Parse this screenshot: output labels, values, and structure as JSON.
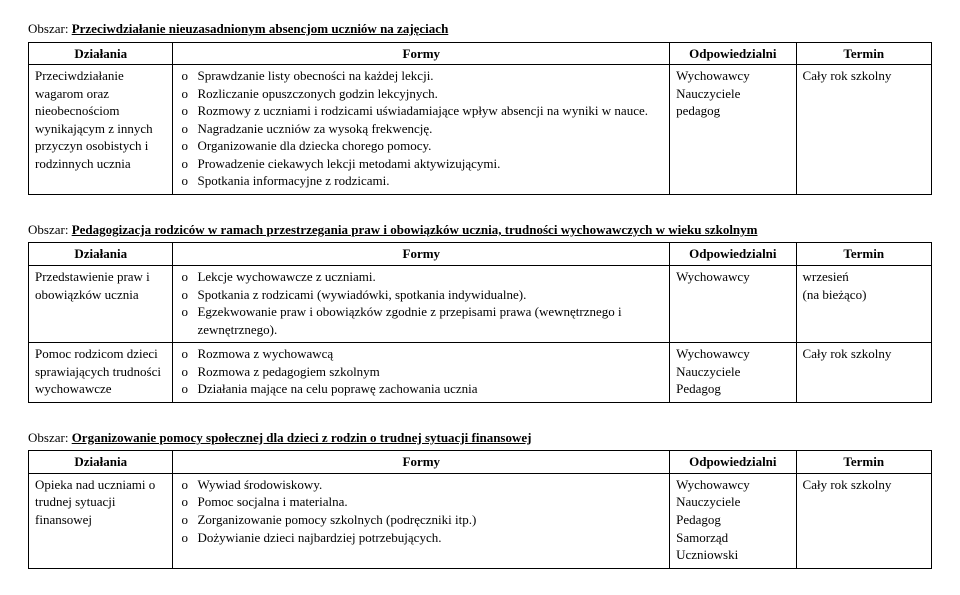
{
  "labels": {
    "area_prefix": "Obszar:",
    "col_dzialania": "Działania",
    "col_formy": "Formy",
    "col_odp": "Odpowiedzialni",
    "col_termin": "Termin"
  },
  "sections": [
    {
      "title": "Przeciwdziałanie nieuzasadnionym absencjom uczniów na zajęciach",
      "rows": [
        {
          "dzialania": "Przeciwdziałanie wagarom oraz nieobecnościom wynikającym z innych przyczyn osobistych i rodzinnych ucznia",
          "formy": [
            "Sprawdzanie listy obecności na każdej lekcji.",
            "Rozliczanie opuszczonych godzin lekcyjnych.",
            "Rozmowy z uczniami i rodzicami uświadamiające wpływ absencji na wyniki w nauce.",
            "Nagradzanie uczniów za wysoką frekwencję.",
            "Organizowanie dla dziecka chorego pomocy.",
            "Prowadzenie ciekawych lekcji metodami aktywizującymi.",
            "Spotkania informacyjne z rodzicami."
          ],
          "odp": "Wychowawcy\nNauczyciele\npedagog",
          "termin": "Cały rok szkolny"
        }
      ]
    },
    {
      "title": "Pedagogizacja rodziców w ramach przestrzegania praw i obowiązków ucznia, trudności wychowawczych w wieku szkolnym",
      "rows": [
        {
          "dzialania": "Przedstawienie praw i obowiązków ucznia",
          "formy": [
            "Lekcje wychowawcze z uczniami.",
            "Spotkania z rodzicami (wywiadówki, spotkania indywidualne).",
            "Egzekwowanie praw i obowiązków zgodnie z przepisami prawa (wewnętrznego i zewnętrznego)."
          ],
          "odp": "Wychowawcy",
          "termin": "wrzesień\n(na bieżąco)"
        },
        {
          "dzialania": "Pomoc rodzicom dzieci sprawiających trudności wychowawcze",
          "formy": [
            "Rozmowa z wychowawcą",
            "Rozmowa z pedagogiem szkolnym",
            "Działania mające na celu poprawę zachowania ucznia"
          ],
          "odp": "Wychowawcy\nNauczyciele\nPedagog",
          "termin": "Cały rok szkolny"
        }
      ]
    },
    {
      "title": "Organizowanie pomocy społecznej dla dzieci z rodzin o trudnej sytuacji finansowej",
      "rows": [
        {
          "dzialania": "Opieka nad uczniami o trudnej sytuacji finansowej",
          "formy": [
            "Wywiad środowiskowy.",
            "Pomoc socjalna i materialna.",
            "Zorganizowanie pomocy szkolnych (podręczniki itp.)",
            "Dożywianie dzieci najbardziej potrzebujących."
          ],
          "odp": "Wychowawcy\nNauczyciele\nPedagog\nSamorząd Uczniowski",
          "termin": "Cały rok szkolny"
        }
      ]
    }
  ]
}
